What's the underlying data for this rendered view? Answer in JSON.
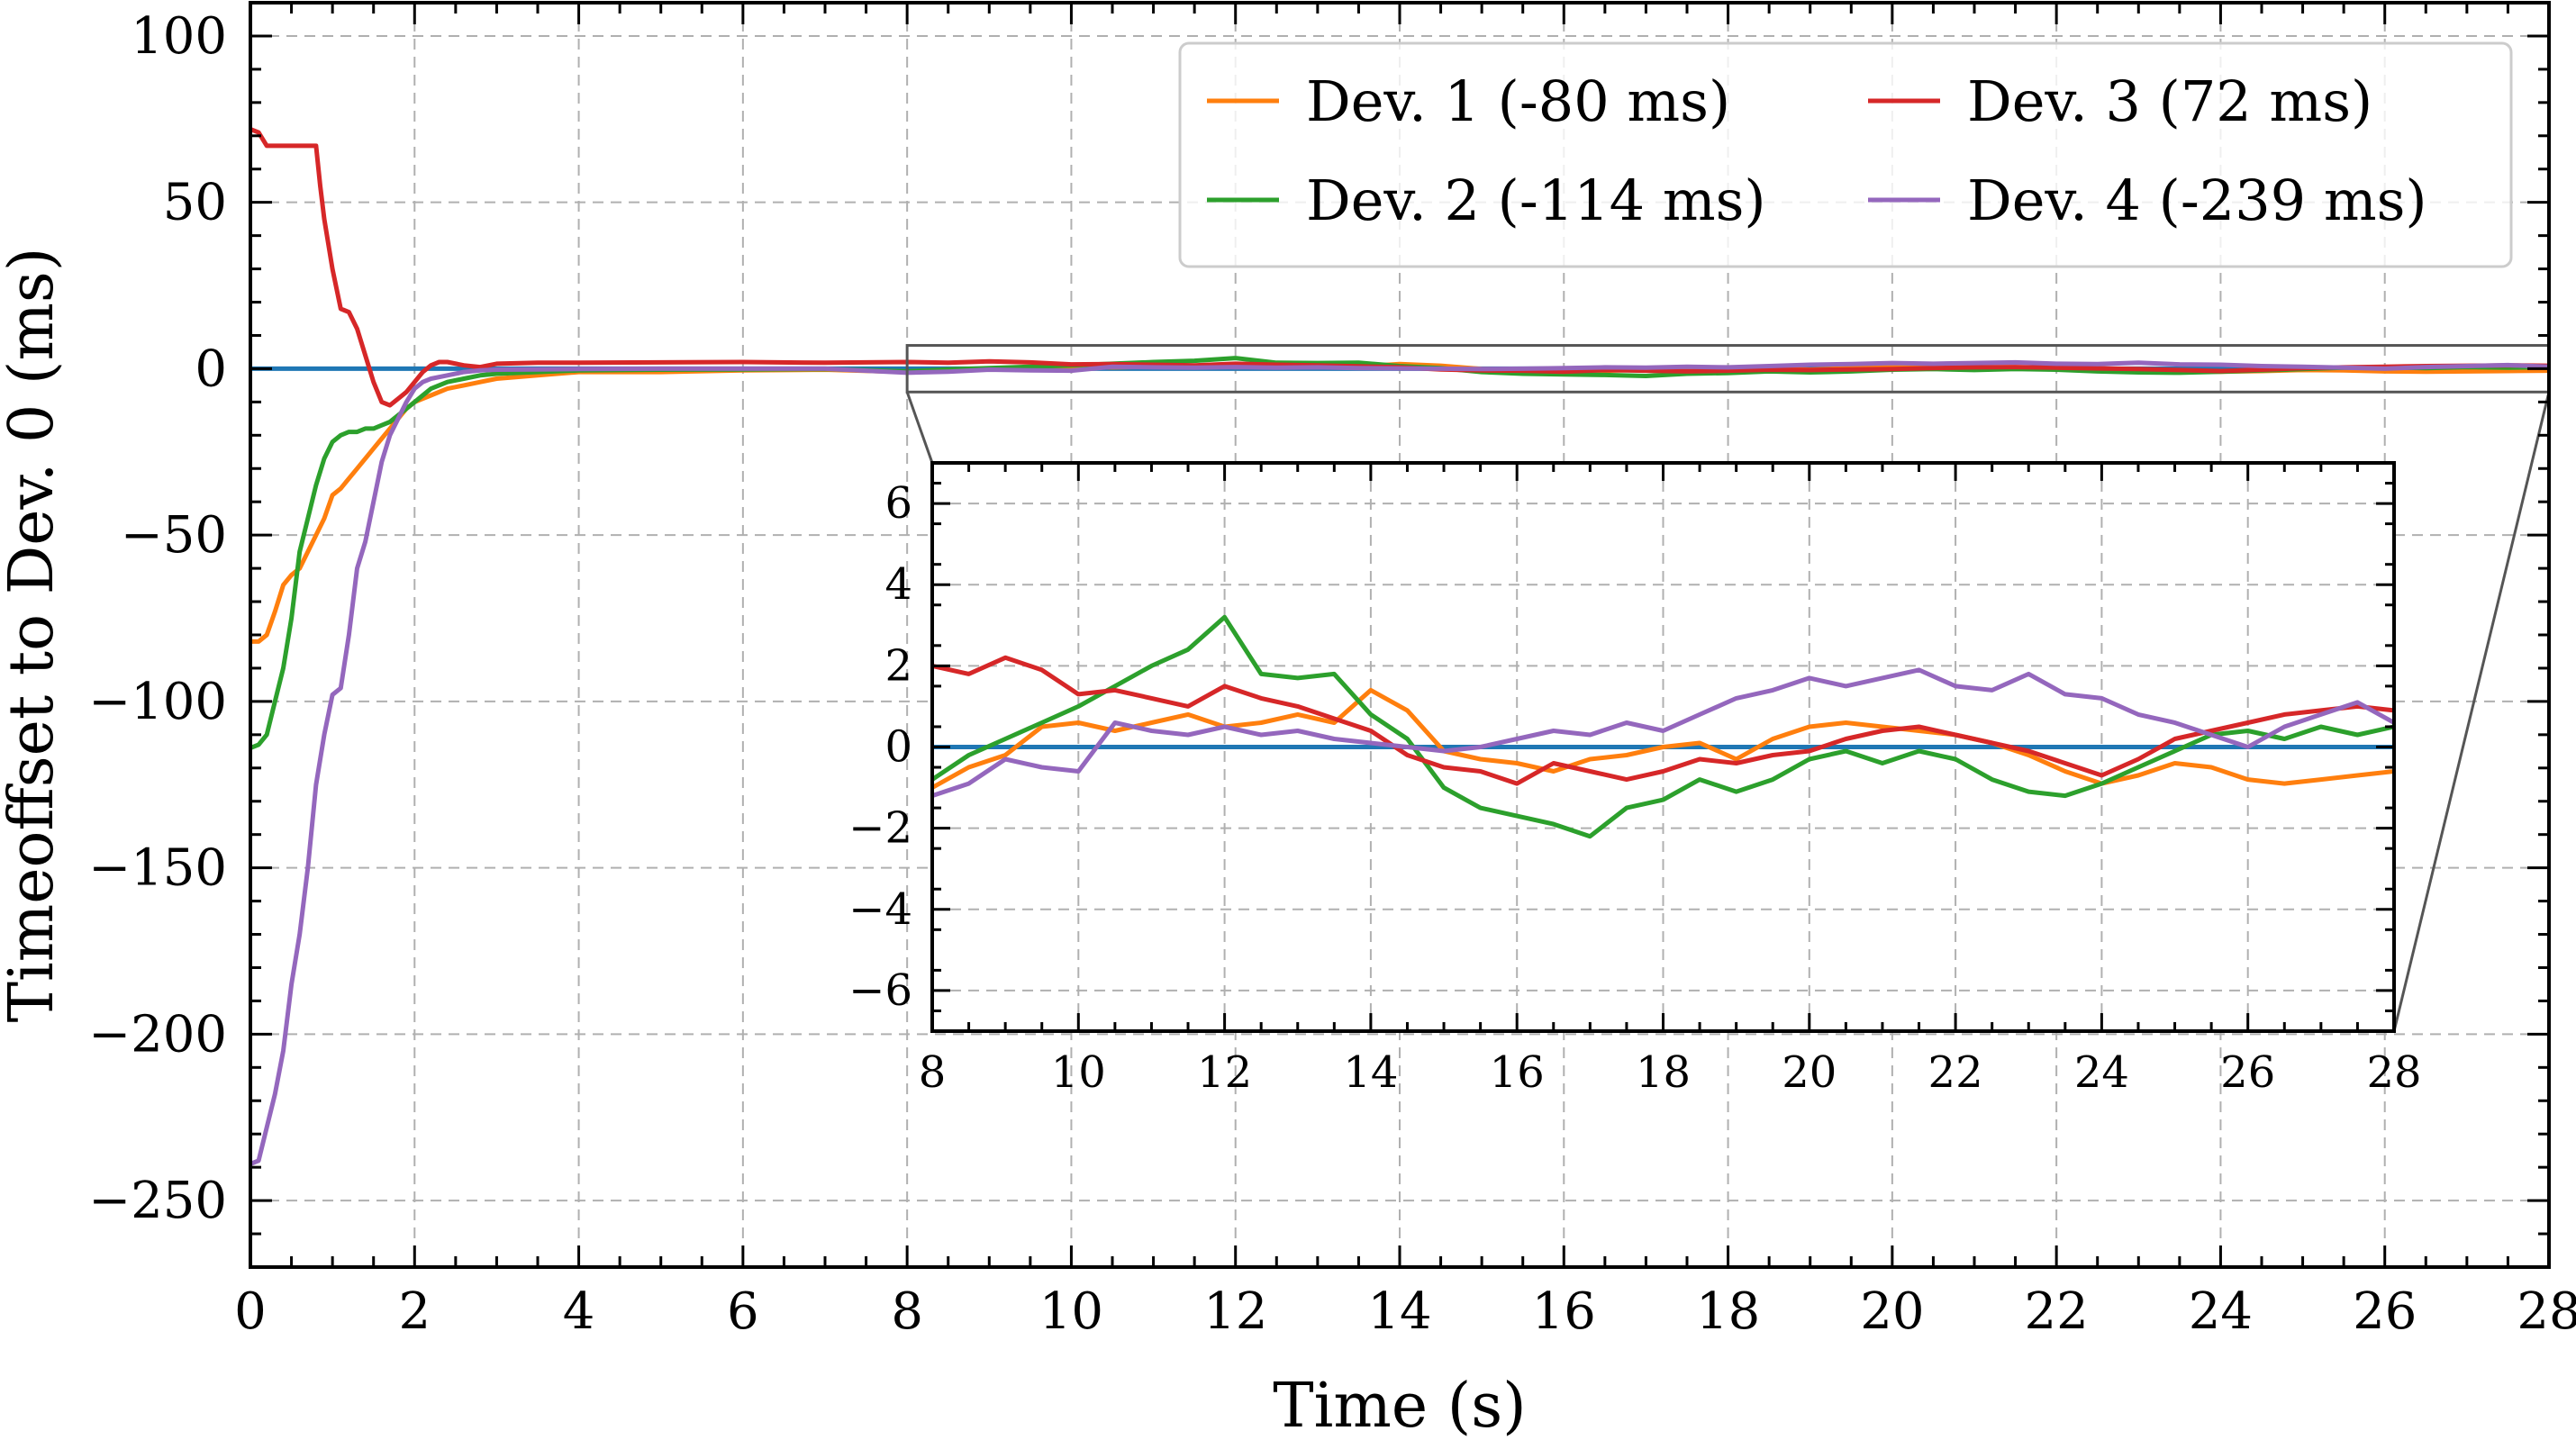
{
  "chart_data": {
    "type": "line",
    "xlabel": "Time (s)",
    "ylabel": "Timeoffset to Dev. 0 (ms)",
    "xlim": [
      0,
      28
    ],
    "ylim": [
      -270,
      110
    ],
    "xticks": [
      0,
      2,
      4,
      6,
      8,
      10,
      12,
      14,
      16,
      18,
      20,
      22,
      24,
      26,
      28
    ],
    "yticks": [
      100,
      50,
      0,
      -50,
      -100,
      -150,
      -200,
      -250
    ],
    "ytick_labels": [
      "100",
      "50",
      "0",
      "−50",
      "−100",
      "−150",
      "−200",
      "−250"
    ],
    "grid": true,
    "legend_position": "top-right",
    "reference": {
      "name": "Dev. 0",
      "value": 0,
      "color": "#1f77b4"
    },
    "series": [
      {
        "name": "Dev. 1 (-80 ms)",
        "color": "#ff7f0e",
        "x": [
          0,
          0.1,
          0.2,
          0.3,
          0.4,
          0.5,
          0.6,
          0.7,
          0.8,
          0.9,
          1.0,
          1.1,
          1.2,
          1.3,
          1.4,
          1.5,
          1.6,
          1.7,
          1.8,
          1.9,
          2.0,
          2.1,
          2.2,
          2.4,
          2.6,
          2.8,
          3.0,
          3.5,
          4.0,
          5.0,
          6.0,
          7.0,
          8.0,
          8.5,
          9.0,
          9.5,
          10.0,
          10.5,
          11.0,
          11.5,
          12.0,
          12.5,
          13.0,
          13.5,
          14.0,
          14.5,
          15.0,
          15.5,
          16.0,
          16.5,
          17.0,
          17.5,
          18.0,
          18.5,
          19.0,
          19.5,
          20.0,
          20.5,
          21.0,
          21.5,
          22.0,
          22.5,
          23.0,
          23.5,
          24.0,
          24.5,
          25.0,
          25.5,
          26.0,
          26.5,
          27.0,
          27.5,
          28.0
        ],
        "y": [
          -82,
          -82,
          -80,
          -73,
          -65,
          -62,
          -60,
          -55,
          -50,
          -45,
          -38,
          -36,
          -33,
          -30,
          -27,
          -24,
          -21,
          -18,
          -15,
          -12,
          -10,
          -9,
          -8,
          -6,
          -5,
          -4,
          -3,
          -2,
          -1,
          -1,
          -0.5,
          -0.3,
          -1,
          -0.5,
          -0.2,
          0.5,
          0.6,
          0.4,
          0.6,
          0.8,
          0.5,
          0.6,
          0.8,
          0.6,
          1.4,
          0.9,
          -0.1,
          -0.3,
          -0.4,
          -0.6,
          -0.3,
          -0.2,
          0.0,
          0.1,
          -0.3,
          0.2,
          0.5,
          0.6,
          0.5,
          0.4,
          0.3,
          0.1,
          -0.2,
          -0.6,
          -0.9,
          -0.7,
          -0.4,
          -0.5,
          -0.8,
          -0.9,
          -0.8,
          -0.7,
          -0.6
        ]
      },
      {
        "name": "Dev. 2 (-114 ms)",
        "color": "#2ca02c",
        "x": [
          0,
          0.1,
          0.2,
          0.3,
          0.4,
          0.5,
          0.6,
          0.7,
          0.8,
          0.9,
          1.0,
          1.1,
          1.2,
          1.3,
          1.4,
          1.5,
          1.6,
          1.7,
          1.8,
          1.9,
          2.0,
          2.1,
          2.2,
          2.4,
          2.6,
          2.8,
          3.0,
          3.5,
          4.0,
          5.0,
          6.0,
          7.0,
          8.0,
          8.5,
          9.0,
          9.5,
          10.0,
          10.5,
          11.0,
          11.5,
          12.0,
          12.5,
          13.0,
          13.5,
          14.0,
          14.5,
          15.0,
          15.5,
          16.0,
          16.5,
          17.0,
          17.5,
          18.0,
          18.5,
          19.0,
          19.5,
          20.0,
          20.5,
          21.0,
          21.5,
          22.0,
          22.5,
          23.0,
          23.5,
          24.0,
          24.5,
          25.0,
          25.5,
          26.0,
          26.5,
          27.0,
          27.5,
          28.0
        ],
        "y": [
          -114,
          -113,
          -110,
          -100,
          -90,
          -75,
          -55,
          -45,
          -35,
          -27,
          -22,
          -20,
          -19,
          -19,
          -18,
          -18,
          -17,
          -16,
          -14,
          -12,
          -10,
          -8,
          -6,
          -4,
          -3,
          -2,
          -1.5,
          -1,
          -0.5,
          -0.3,
          -0.2,
          -0.1,
          -0.8,
          -0.2,
          0.2,
          0.6,
          1.0,
          1.5,
          2.0,
          2.4,
          3.2,
          1.8,
          1.7,
          1.8,
          0.8,
          0.2,
          -1.0,
          -1.5,
          -1.7,
          -1.9,
          -2.2,
          -1.5,
          -1.3,
          -0.8,
          -1.1,
          -0.8,
          -0.3,
          -0.1,
          -0.4,
          -0.1,
          -0.3,
          -0.8,
          -1.1,
          -1.2,
          -0.9,
          -0.5,
          -0.1,
          0.3,
          0.4,
          0.2,
          0.5,
          0.3,
          0.5
        ]
      },
      {
        "name": "Dev. 3 (72 ms)",
        "color": "#d62728",
        "x": [
          0,
          0.1,
          0.2,
          0.3,
          0.4,
          0.5,
          0.6,
          0.7,
          0.8,
          0.85,
          0.9,
          1.0,
          1.1,
          1.2,
          1.3,
          1.4,
          1.5,
          1.6,
          1.7,
          1.8,
          1.9,
          2.0,
          2.1,
          2.2,
          2.3,
          2.4,
          2.6,
          2.8,
          3.0,
          3.5,
          4.0,
          5.0,
          6.0,
          7.0,
          8.0,
          8.5,
          9.0,
          9.5,
          10.0,
          10.5,
          11.0,
          11.5,
          12.0,
          12.5,
          13.0,
          13.5,
          14.0,
          14.5,
          15.0,
          15.5,
          16.0,
          16.5,
          17.0,
          17.5,
          18.0,
          18.5,
          19.0,
          19.5,
          20.0,
          20.5,
          21.0,
          21.5,
          22.0,
          22.5,
          23.0,
          23.5,
          24.0,
          24.5,
          25.0,
          25.5,
          26.0,
          26.5,
          27.0,
          27.5,
          28.0
        ],
        "y": [
          72,
          71,
          67,
          67,
          67,
          67,
          67,
          67,
          67,
          55,
          45,
          30,
          18,
          17,
          12,
          4,
          -4,
          -10,
          -11,
          -9,
          -7,
          -4,
          -1,
          1,
          2,
          2,
          1,
          0.5,
          1.5,
          1.8,
          1.8,
          1.9,
          2.0,
          1.8,
          2.0,
          1.8,
          2.2,
          1.9,
          1.3,
          1.4,
          1.2,
          1.0,
          1.5,
          1.2,
          1.0,
          0.7,
          0.4,
          -0.2,
          -0.5,
          -0.6,
          -0.9,
          -0.4,
          -0.6,
          -0.8,
          -0.6,
          -0.3,
          -0.4,
          -0.2,
          -0.1,
          0.2,
          0.4,
          0.5,
          0.3,
          0.1,
          -0.1,
          -0.4,
          -0.7,
          -0.3,
          0.2,
          0.4,
          0.6,
          0.8,
          0.9,
          1.0,
          0.9
        ]
      },
      {
        "name": "Dev. 4 (-239 ms)",
        "color": "#9467bd",
        "x": [
          0,
          0.1,
          0.2,
          0.3,
          0.4,
          0.5,
          0.6,
          0.7,
          0.8,
          0.9,
          1.0,
          1.1,
          1.2,
          1.3,
          1.4,
          1.5,
          1.6,
          1.7,
          1.8,
          1.9,
          2.0,
          2.1,
          2.2,
          2.4,
          2.6,
          2.8,
          3.0,
          3.5,
          4.0,
          5.0,
          6.0,
          7.0,
          8.0,
          8.5,
          9.0,
          9.5,
          10.0,
          10.5,
          11.0,
          11.5,
          12.0,
          12.5,
          13.0,
          13.5,
          14.0,
          14.5,
          15.0,
          15.5,
          16.0,
          16.5,
          17.0,
          17.5,
          18.0,
          18.5,
          19.0,
          19.5,
          20.0,
          20.5,
          21.0,
          21.5,
          22.0,
          22.5,
          23.0,
          23.5,
          24.0,
          24.5,
          25.0,
          25.5,
          26.0,
          26.5,
          27.0,
          27.5,
          28.0
        ],
        "y": [
          -239,
          -238,
          -228,
          -218,
          -205,
          -185,
          -170,
          -150,
          -125,
          -110,
          -98,
          -96,
          -80,
          -60,
          -52,
          -40,
          -28,
          -20,
          -15,
          -10,
          -6,
          -4,
          -3,
          -2,
          -1,
          -0.5,
          -0.3,
          -0.2,
          -0.1,
          0,
          0,
          0,
          -1.2,
          -0.9,
          -0.3,
          -0.5,
          -0.6,
          0.6,
          0.4,
          0.3,
          0.5,
          0.3,
          0.4,
          0.2,
          0.1,
          0.0,
          -0.1,
          0.0,
          0.2,
          0.4,
          0.3,
          0.6,
          0.4,
          0.8,
          1.2,
          1.4,
          1.7,
          1.5,
          1.7,
          1.9,
          1.5,
          1.4,
          1.8,
          1.3,
          1.2,
          0.8,
          0.6,
          0.3,
          0.0,
          0.5,
          0.8,
          1.1,
          0.6
        ]
      }
    ],
    "inset": {
      "xlim": [
        8,
        28
      ],
      "ylim": [
        -7,
        7
      ],
      "xticks": [
        8,
        10,
        12,
        14,
        16,
        18,
        20,
        22,
        24,
        26,
        28
      ],
      "yticks": [
        6,
        4,
        2,
        0,
        -2,
        -4,
        -6
      ],
      "ytick_labels": [
        "6",
        "4",
        "2",
        "0",
        "−2",
        "−4",
        "−6"
      ]
    }
  }
}
